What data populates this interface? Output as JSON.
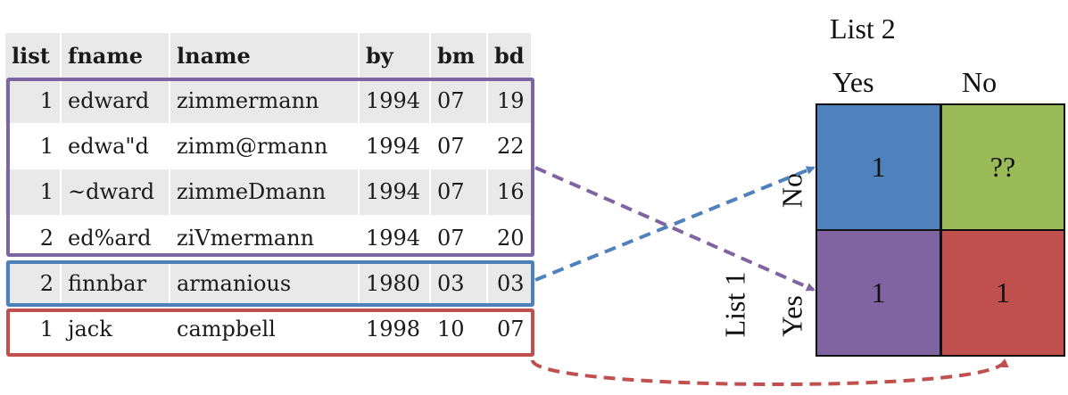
{
  "table": {
    "headers": [
      "list",
      "fname",
      "lname",
      "by",
      "bm",
      "bd"
    ],
    "rows": [
      [
        "1",
        "edward",
        "zimmermann",
        "1994",
        "07",
        "19"
      ],
      [
        "1",
        "edwa\"d",
        "zimm@rmann",
        "1994",
        "07",
        "22"
      ],
      [
        "1",
        "~dward",
        "zimmeDmann",
        "1994",
        "07",
        "16"
      ],
      [
        "2",
        "ed%ard",
        "ziVmermann",
        "1994",
        "07",
        "20"
      ],
      [
        "2",
        "finnbar",
        "armanious",
        "1980",
        "03",
        "03"
      ],
      [
        "1",
        "jack",
        "campbell",
        "1998",
        "10",
        "07"
      ]
    ]
  },
  "groups": [
    {
      "id": "edward",
      "color": "#7b66a2"
    },
    {
      "id": "finnbar",
      "color": "#4b80b9"
    },
    {
      "id": "jack",
      "color": "#c0504d"
    }
  ],
  "matrix": {
    "col_title": "List 2",
    "row_title": "List 1",
    "col_labels": [
      "Yes",
      "No"
    ],
    "row_labels": [
      "No",
      "Yes"
    ],
    "cells": [
      {
        "row": "No",
        "col": "Yes",
        "value": "1",
        "color": "#4f81bd"
      },
      {
        "row": "No",
        "col": "No",
        "value": "??",
        "color": "#9bbb59"
      },
      {
        "row": "Yes",
        "col": "Yes",
        "value": "1",
        "color": "#8064a2"
      },
      {
        "row": "Yes",
        "col": "No",
        "value": "1",
        "color": "#c0504d"
      }
    ]
  }
}
